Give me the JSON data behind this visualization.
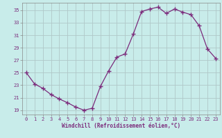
{
  "x": [
    0,
    1,
    2,
    3,
    4,
    5,
    6,
    7,
    8,
    9,
    10,
    11,
    12,
    13,
    14,
    15,
    16,
    17,
    18,
    19,
    20,
    21,
    22,
    23
  ],
  "y": [
    25.0,
    23.2,
    22.5,
    21.5,
    20.8,
    20.2,
    19.5,
    19.0,
    19.3,
    22.8,
    25.3,
    27.5,
    28.0,
    31.2,
    34.8,
    35.2,
    35.5,
    34.5,
    35.2,
    34.7,
    34.3,
    32.5,
    28.8,
    27.3
  ],
  "line_color": "#7b2a7b",
  "marker": "+",
  "marker_size": 4,
  "marker_lw": 1.0,
  "bg_color": "#c8ecea",
  "grid_color": "#b0c8c8",
  "xlabel": "Windchill (Refroidissement éolien,°C)",
  "ylabel_ticks": [
    19,
    21,
    23,
    25,
    27,
    29,
    31,
    33,
    35
  ],
  "xticks": [
    0,
    1,
    2,
    3,
    4,
    5,
    6,
    7,
    8,
    9,
    10,
    11,
    12,
    13,
    14,
    15,
    16,
    17,
    18,
    19,
    20,
    21,
    22,
    23
  ],
  "ylim": [
    18.3,
    36.2
  ],
  "xlim": [
    -0.5,
    23.5
  ],
  "tick_fontsize": 5.0,
  "xlabel_fontsize": 5.5
}
